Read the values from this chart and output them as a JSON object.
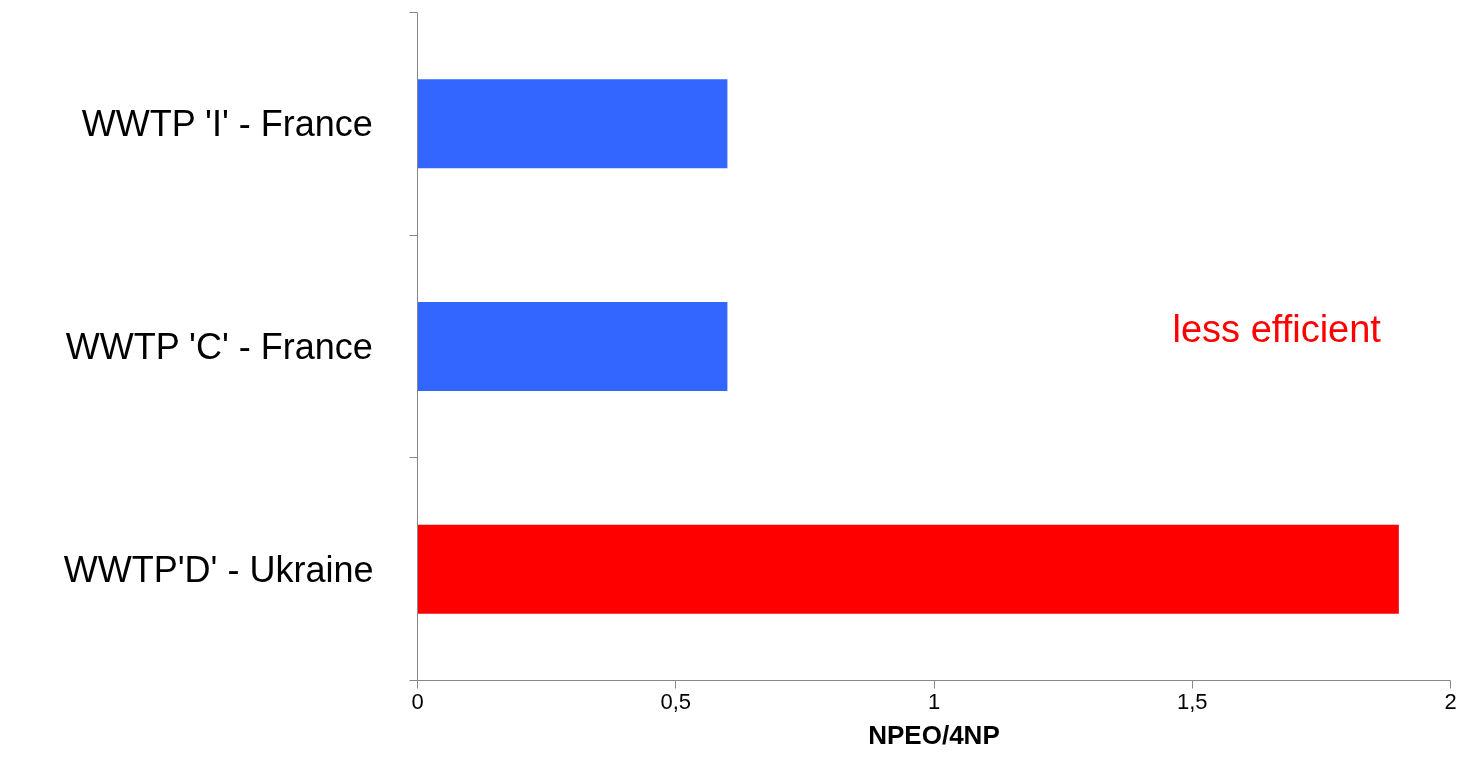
{
  "chart_data": {
    "type": "bar",
    "orientation": "horizontal",
    "categories": [
      "WWTP 'I' - France",
      "WWTP 'C' - France",
      "WWTP'D' - Ukraine"
    ],
    "values": [
      0.6,
      0.6,
      1.9
    ],
    "colors": [
      "#3366ff",
      "#3366ff",
      "#ff0000"
    ],
    "xlabel": "NPEO/4NP",
    "xlim": [
      0,
      2
    ],
    "xticks": [
      0,
      {
        "value": 0.5,
        "label": "0,5"
      },
      1,
      {
        "value": 1.5,
        "label": "1,5"
      },
      2
    ],
    "grid": false,
    "annotations": [
      "less efficient"
    ]
  }
}
